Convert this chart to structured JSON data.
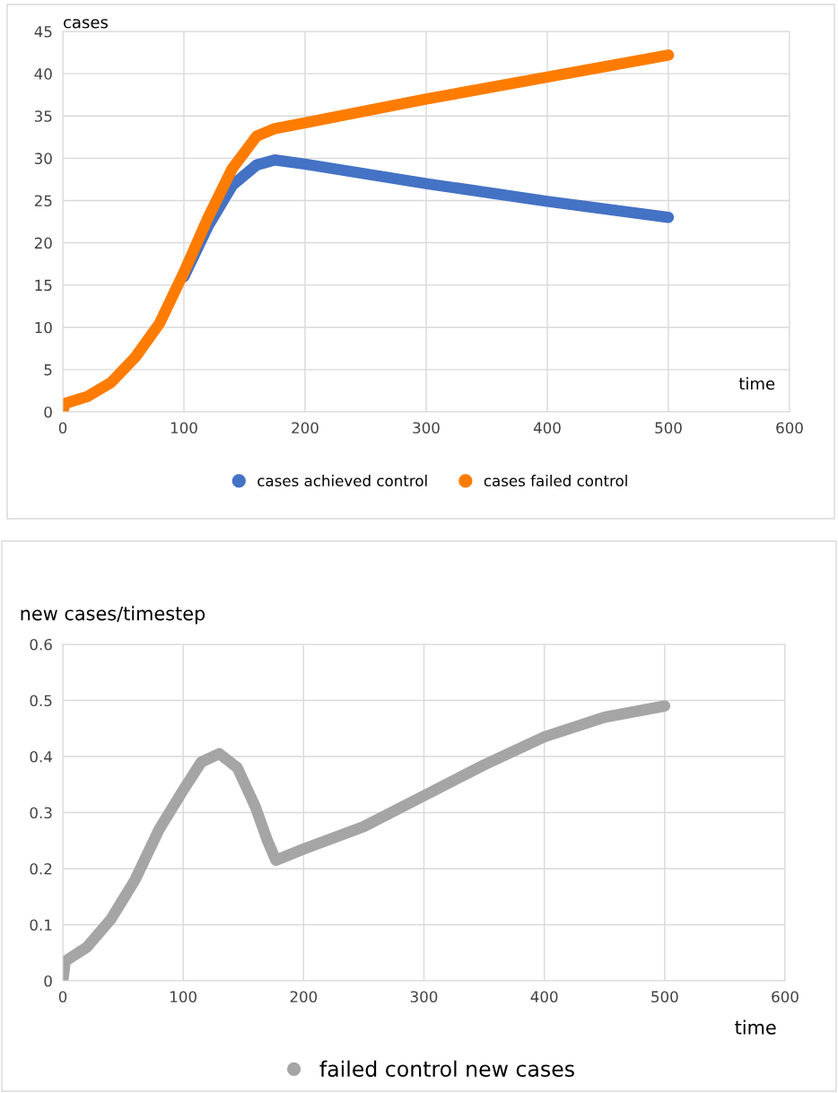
{
  "chart_data": [
    {
      "type": "line",
      "ylabel": "cases",
      "xlabel": "time",
      "xlim": [
        0,
        600
      ],
      "xticks": [
        0,
        100,
        200,
        300,
        400,
        500,
        600
      ],
      "ylim": [
        0,
        45
      ],
      "yticks": [
        0,
        5,
        10,
        15,
        20,
        25,
        30,
        35,
        40,
        45
      ],
      "grid": true,
      "legend": "bottom",
      "line_style": "solid",
      "series": [
        {
          "name": "cases achieved control",
          "color": "#4472c4",
          "x": [
            100,
            120,
            140,
            160,
            175,
            200,
            300,
            400,
            500
          ],
          "values": [
            16,
            22,
            26.8,
            29.2,
            29.8,
            29.3,
            27.0,
            24.9,
            23.0
          ]
        },
        {
          "name": "cases failed control",
          "color": "#ff7c00",
          "x": [
            0,
            2,
            20,
            40,
            60,
            80,
            100,
            120,
            140,
            160,
            175,
            200,
            300,
            400,
            500
          ],
          "values": [
            0,
            1.0,
            1.8,
            3.5,
            6.5,
            10.5,
            16.5,
            23,
            28.8,
            32.6,
            33.5,
            34.2,
            37.0,
            39.6,
            42.2
          ]
        }
      ]
    },
    {
      "type": "line",
      "ylabel": "new cases/timestep",
      "xlabel": "time",
      "xlim": [
        0,
        600
      ],
      "xticks": [
        0,
        100,
        200,
        300,
        400,
        500,
        600
      ],
      "ylim": [
        0,
        0.6
      ],
      "yticks": [
        {
          "value": 0,
          "label": "0"
        },
        0.1,
        0.2,
        0.3,
        0.4,
        0.5,
        0.6
      ],
      "grid": true,
      "legend": "bottom",
      "line_style": "solid",
      "series": [
        {
          "name": "failed control new cases",
          "color": "#a5a5a5",
          "x": [
            0,
            2,
            20,
            40,
            60,
            80,
            100,
            115,
            130,
            145,
            160,
            170,
            177,
            200,
            250,
            300,
            350,
            400,
            450,
            500
          ],
          "values": [
            0,
            0.035,
            0.06,
            0.11,
            0.18,
            0.27,
            0.34,
            0.39,
            0.405,
            0.38,
            0.31,
            0.25,
            0.215,
            0.235,
            0.275,
            0.33,
            0.385,
            0.435,
            0.47,
            0.49
          ]
        }
      ]
    }
  ]
}
